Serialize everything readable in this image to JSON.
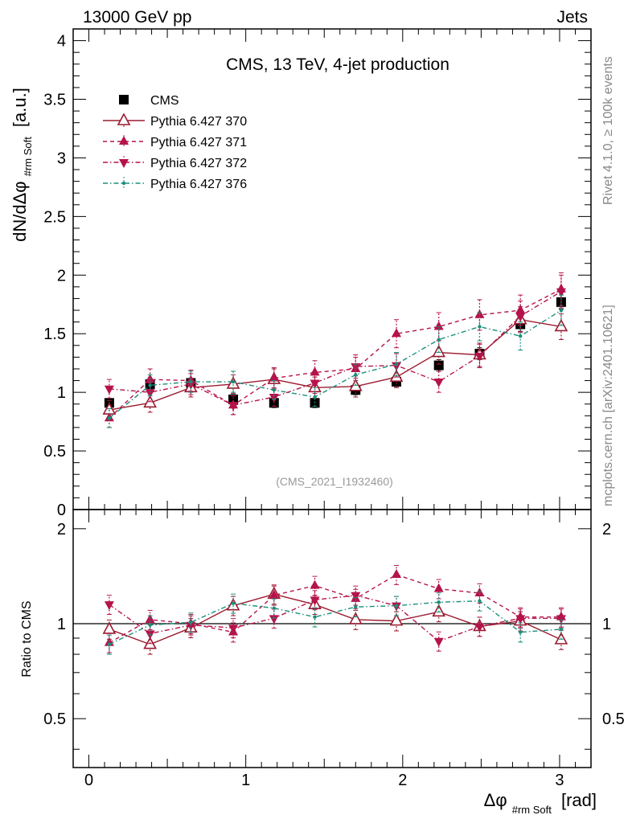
{
  "header": {
    "left": "13000 GeV pp",
    "right": "Jets"
  },
  "side_labels": {
    "rivet": "Rivet 4.1.0, ≥ 100k events",
    "mcplots": "mcplots.cern.ch [arXiv:2401.10621]"
  },
  "chart_data": {
    "type": "scatter",
    "title": "CMS, 13 TeV, 4-jet production",
    "analysis_id": "(CMS_2021_I1932460)",
    "xlabel_main": "Δφ",
    "xlabel_sub": "#rm Soft",
    "xlabel_unit": "[rad]",
    "ylabel_main": "dN/dΔφ",
    "ylabel_sub": "#rm Soft",
    "ylabel_unit": "[a.u.]",
    "ratio_ylabel": "Ratio to CMS",
    "xlim": [
      -0.1,
      3.2
    ],
    "ylim": [
      0,
      4.1
    ],
    "ratio_ylim": [
      0.35,
      2.3
    ],
    "x_ticks": [
      "0",
      "1",
      "2",
      "3"
    ],
    "y_ticks": [
      "0",
      "0.5",
      "1",
      "1.5",
      "2",
      "2.5",
      "3",
      "3.5",
      "4"
    ],
    "ratio_y_ticks": [
      "0.5",
      "1",
      "2"
    ],
    "x": [
      0.13,
      0.39,
      0.65,
      0.92,
      1.18,
      1.44,
      1.7,
      1.96,
      2.23,
      2.49,
      2.75,
      3.01
    ],
    "colors": {
      "cms": "#000000",
      "p370": "#9b1b30",
      "p371": "#b5134b",
      "p372": "#b5134b",
      "p376": "#1a8f7a"
    },
    "series": [
      {
        "name": "CMS",
        "key": "cms",
        "marker": "square",
        "line": "none",
        "values": [
          0.91,
          1.07,
          1.08,
          0.94,
          0.91,
          0.91,
          1.02,
          1.09,
          1.23,
          1.33,
          1.58,
          1.77
        ],
        "errors": [
          0.04,
          0.04,
          0.04,
          0.04,
          0.04,
          0.04,
          0.04,
          0.04,
          0.05,
          0.05,
          0.06,
          0.06
        ]
      },
      {
        "name": "Pythia 6.427 370",
        "key": "p370",
        "marker": "triangle-open",
        "line": "solid",
        "values": [
          0.85,
          0.91,
          1.04,
          1.07,
          1.11,
          1.04,
          1.05,
          1.13,
          1.34,
          1.32,
          1.62,
          1.56
        ],
        "errors": [
          0.08,
          0.08,
          0.08,
          0.08,
          0.09,
          0.09,
          0.09,
          0.09,
          0.1,
          0.1,
          0.11,
          0.11
        ]
      },
      {
        "name": "Pythia 6.427 371",
        "key": "p371",
        "marker": "triangle-up",
        "line": "dashed",
        "values": [
          0.78,
          1.11,
          1.1,
          0.89,
          1.12,
          1.17,
          1.2,
          1.5,
          1.56,
          1.66,
          1.7,
          1.88
        ],
        "errors": [
          0.08,
          0.09,
          0.09,
          0.08,
          0.09,
          0.1,
          0.1,
          0.12,
          0.12,
          0.13,
          0.13,
          0.14
        ]
      },
      {
        "name": "Pythia 6.427 372",
        "key": "p372",
        "marker": "triangle-down",
        "line": "dashdot",
        "values": [
          1.03,
          1.0,
          1.07,
          0.89,
          0.96,
          1.08,
          1.22,
          1.23,
          1.09,
          1.31,
          1.65,
          1.86
        ],
        "errors": [
          0.08,
          0.08,
          0.09,
          0.08,
          0.08,
          0.09,
          0.1,
          0.1,
          0.09,
          0.1,
          0.13,
          0.14
        ]
      },
      {
        "name": "Pythia 6.427 376",
        "key": "p376",
        "marker": "dot",
        "line": "dashdot",
        "values": [
          0.78,
          1.06,
          1.09,
          1.09,
          1.02,
          0.96,
          1.15,
          1.24,
          1.45,
          1.56,
          1.48,
          1.7
        ],
        "errors": [
          0.08,
          0.09,
          0.09,
          0.09,
          0.08,
          0.08,
          0.09,
          0.1,
          0.11,
          0.12,
          0.12,
          0.13
        ]
      }
    ],
    "ratio_series": [
      {
        "key": "cms",
        "values": [
          1,
          1,
          1,
          1,
          1,
          1,
          1,
          1,
          1,
          1,
          1,
          1
        ]
      },
      {
        "key": "p370",
        "values": [
          0.96,
          0.86,
          0.97,
          1.14,
          1.24,
          1.15,
          1.03,
          1.02,
          1.09,
          0.98,
          1.02,
          0.89
        ]
      },
      {
        "key": "p371",
        "values": [
          0.87,
          1.03,
          1.0,
          0.94,
          1.23,
          1.32,
          1.2,
          1.43,
          1.29,
          1.25,
          1.05,
          1.05
        ]
      },
      {
        "key": "p372",
        "values": [
          1.15,
          0.93,
          0.99,
          0.97,
          1.04,
          1.19,
          1.23,
          1.14,
          0.88,
          0.98,
          1.04,
          1.04
        ]
      },
      {
        "key": "p376",
        "values": [
          0.86,
          0.99,
          1.01,
          1.16,
          1.12,
          1.05,
          1.13,
          1.14,
          1.17,
          1.18,
          0.94,
          0.96
        ]
      }
    ]
  }
}
